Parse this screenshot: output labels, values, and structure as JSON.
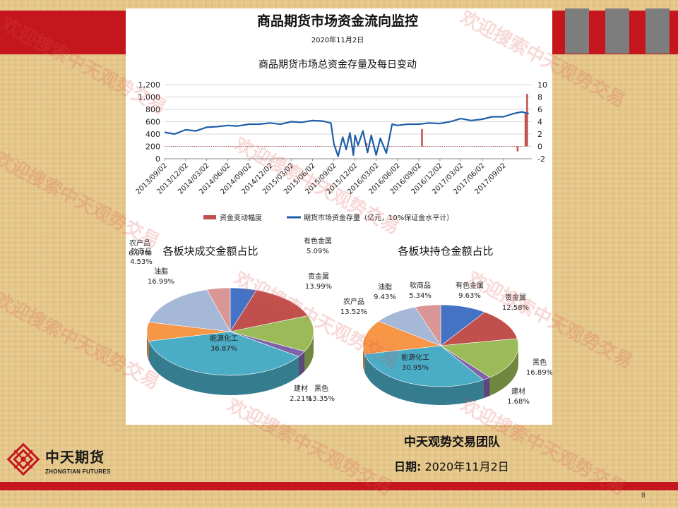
{
  "slide": {
    "title": "商品期货市场资金流向监控",
    "date": "2020年11月2日",
    "page_number": "8",
    "watermark": "欢迎搜索中天观势交易",
    "footer": {
      "team": "中天观势交易团队",
      "date_label": "日期:",
      "date_value": "2020年11月2日"
    },
    "logo": {
      "cn": "中天期货",
      "en": "ZHONGTIAN FUTURES"
    },
    "colors": {
      "red": "#c4161c",
      "background": "#e8c98a",
      "gray": "#7d7d7d"
    }
  },
  "chart_data": [
    {
      "type": "line",
      "title": "商品期货市场总资金存量及每日变动",
      "y_left_ticks": [
        "0",
        "200",
        "400",
        "600",
        "800",
        "1,000",
        "1,200"
      ],
      "y_left_range": [
        0,
        1200
      ],
      "y_right_ticks": [
        "-2",
        "0",
        "2",
        "4",
        "6",
        "8",
        "10"
      ],
      "y_right_range": [
        -2,
        10
      ],
      "x_ticks": [
        "2013/09/02",
        "2013/12/02",
        "2014/03/02",
        "2014/06/02",
        "2014/09/02",
        "2014/12/02",
        "2015/03/02",
        "2015/06/02",
        "2015/09/02",
        "2015/12/02",
        "2016/03/02",
        "2016/06/02",
        "2016/09/02",
        "2016/12/02",
        "2017/03/02",
        "2017/06/02",
        "2017/09/02"
      ],
      "grid": true,
      "legend_position": "bottom",
      "series": [
        {
          "name": "期货市场资金存量（亿元，10%保证金水平计）",
          "axis": "left",
          "color": "#1f5fa8",
          "x": [
            "2013/09/02",
            "2013/10/15",
            "2013/12/02",
            "2014/01/15",
            "2014/03/02",
            "2014/04/15",
            "2014/06/02",
            "2014/07/15",
            "2014/09/02",
            "2014/10/15",
            "2014/12/02",
            "2015/01/15",
            "2015/03/02",
            "2015/04/15",
            "2015/06/02",
            "2015/07/15",
            "2015/08/20",
            "2015/09/02",
            "2015/09/20",
            "2015/10/10",
            "2015/10/25",
            "2015/11/10",
            "2015/11/25",
            "2015/12/02",
            "2015/12/15",
            "2016/01/05",
            "2016/01/25",
            "2016/02/10",
            "2016/03/02",
            "2016/03/20",
            "2016/04/15",
            "2016/05/10",
            "2016/06/02",
            "2016/07/15",
            "2016/09/02",
            "2016/10/15",
            "2016/12/02",
            "2017/01/15",
            "2017/03/02",
            "2017/04/15",
            "2017/06/02",
            "2017/07/15",
            "2017/09/02",
            "2017/10/15",
            "2017/11/20",
            "2017/12/20"
          ],
          "values": [
            430,
            400,
            470,
            450,
            510,
            520,
            540,
            530,
            560,
            560,
            580,
            560,
            600,
            590,
            620,
            610,
            580,
            240,
            40,
            350,
            150,
            420,
            60,
            380,
            220,
            450,
            100,
            380,
            60,
            330,
            90,
            560,
            540,
            560,
            560,
            580,
            570,
            600,
            650,
            620,
            640,
            680,
            680,
            730,
            760,
            730
          ]
        },
        {
          "name": "资金变动幅度",
          "axis": "right",
          "color": "#c0504d",
          "x": [
            "2016/01/20",
            "2016/09/15",
            "2017/11/01",
            "2017/12/05",
            "2017/12/12"
          ],
          "values": [
            0.5,
            2.8,
            -0.8,
            5.3,
            8.5
          ]
        }
      ]
    },
    {
      "type": "pie",
      "title": "各板块成交金额占比",
      "slices": [
        {
          "label": "有色金属",
          "value": 5.09,
          "display": "5.09%",
          "color": "#4472c4"
        },
        {
          "label": "贵金属",
          "value": 13.99,
          "display": "13.99%",
          "color": "#c0504d"
        },
        {
          "label": "黑色",
          "value": 13.35,
          "display": "13.35%",
          "color": "#9bbb59"
        },
        {
          "label": "建材",
          "value": 2.21,
          "display": "2.21%",
          "color": "#7f63a8"
        },
        {
          "label": "能源化工",
          "value": 36.87,
          "display": "36.87%",
          "color": "#4bacc6"
        },
        {
          "label": "农产品",
          "value": 6.97,
          "display": "6.97%",
          "color": "#f79646"
        },
        {
          "label": "油脂",
          "value": 16.99,
          "display": "16.99%",
          "color": "#a5b8d7"
        },
        {
          "label": "软商品",
          "value": 4.53,
          "display": "4.53%",
          "color": "#d99694"
        }
      ]
    },
    {
      "type": "pie",
      "title": "各板块持仓金额占比",
      "slices": [
        {
          "label": "有色金属",
          "value": 9.63,
          "display": "9.63%",
          "color": "#4472c4"
        },
        {
          "label": "贵金属",
          "value": 12.58,
          "display": "12.58%",
          "color": "#c0504d"
        },
        {
          "label": "黑色",
          "value": 16.89,
          "display": "16.89%",
          "color": "#9bbb59"
        },
        {
          "label": "建材",
          "value": 1.68,
          "display": "1.68%",
          "color": "#7f63a8"
        },
        {
          "label": "能源化工",
          "value": 30.95,
          "display": "30.95%",
          "color": "#4bacc6"
        },
        {
          "label": "农产品",
          "value": 13.52,
          "display": "13.52%",
          "color": "#f79646"
        },
        {
          "label": "油脂",
          "value": 9.43,
          "display": "9.43%",
          "color": "#a5b8d7"
        },
        {
          "label": "软商品",
          "value": 5.34,
          "display": "5.34%",
          "color": "#d99694"
        }
      ]
    }
  ]
}
